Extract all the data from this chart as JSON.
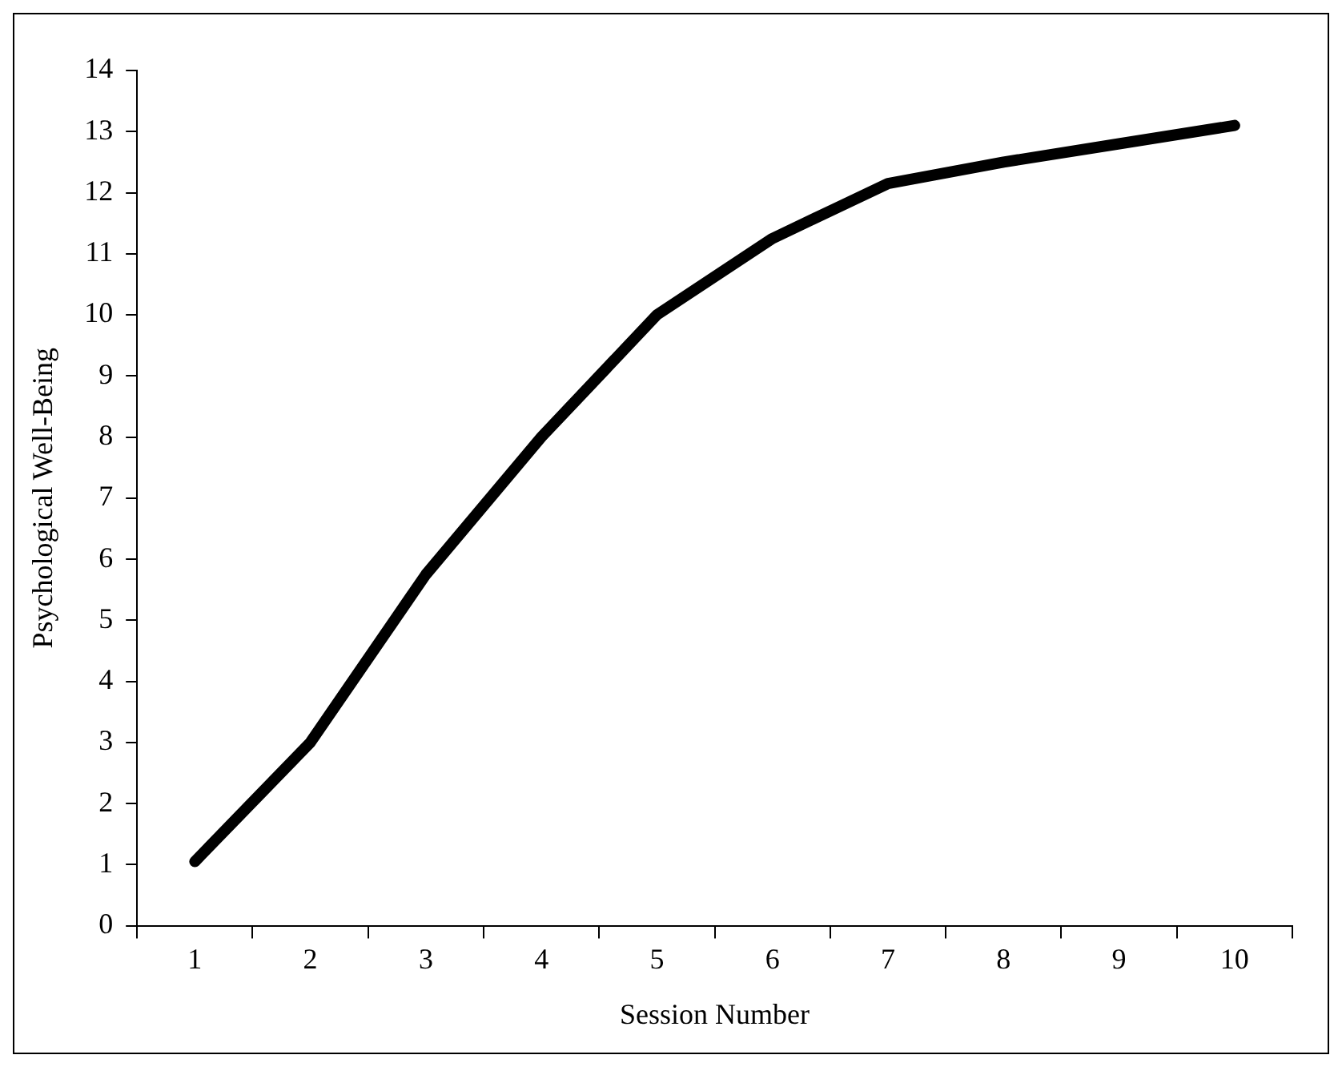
{
  "chart_data": {
    "type": "line",
    "xlabel": "Session Number",
    "ylabel": "Psychological Well-Being",
    "categories": [
      "1",
      "2",
      "3",
      "4",
      "5",
      "6",
      "7",
      "8",
      "9",
      "10"
    ],
    "series": [
      {
        "color": "#000000",
        "values": [
          1.05,
          3.0,
          5.75,
          8.0,
          10.0,
          11.25,
          12.15,
          12.5,
          12.8,
          13.1
        ]
      }
    ],
    "ylim": [
      0,
      14
    ],
    "yticks": [
      0,
      1,
      2,
      3,
      4,
      5,
      6,
      7,
      8,
      9,
      10,
      11,
      12,
      13,
      14
    ],
    "grid": false,
    "legend": false,
    "marker": "none",
    "line_style": "solid"
  }
}
